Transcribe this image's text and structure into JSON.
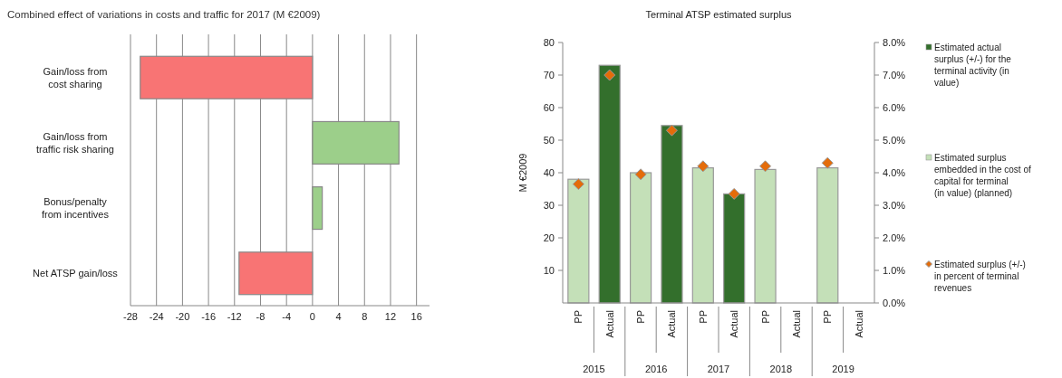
{
  "chart_data": [
    {
      "type": "bar",
      "orientation": "horizontal",
      "title": "Combined effect of variations in costs and traffic for 2017 (M €2009)",
      "categories": [
        "Gain/loss from\ncost sharing",
        "Gain/loss from\ntraffic risk sharing",
        "Bonus/penalty\nfrom incentives",
        "Net ATSP gain/loss"
      ],
      "values": [
        -26.5,
        13.3,
        1.5,
        -11.3
      ],
      "colors": [
        "#f87474",
        "#9ccf8a",
        "#9ccf8a",
        "#f87474"
      ],
      "xlim": [
        -28,
        18
      ],
      "xticks": [
        -28,
        -24,
        -20,
        -16,
        -12,
        -8,
        -4,
        0,
        4,
        8,
        12,
        16
      ],
      "grid": "x",
      "legend": false
    },
    {
      "type": "bar",
      "title": "Terminal ATSP estimated surplus",
      "ylabel": "M €2009",
      "categories": [
        "PP",
        "Actual",
        "PP",
        "Actual",
        "PP",
        "Actual",
        "PP",
        "Actual",
        "PP",
        "Actual"
      ],
      "annotations": [
        "2015",
        "2016",
        "2017",
        "2018",
        "2019"
      ],
      "series": [
        {
          "name": "Estimated actual surplus (+/-) for the terminal activity (in value)",
          "color": "#336f2c",
          "values": [
            null,
            73,
            null,
            54.5,
            null,
            33.5,
            null,
            null,
            null,
            null
          ]
        },
        {
          "name": "Estimated surplus embedded in the cost of capital for terminal (in value) (planned)",
          "color": "#c4e0b8",
          "values": [
            38,
            null,
            40,
            null,
            41.5,
            null,
            41,
            null,
            41.5,
            null
          ]
        },
        {
          "name": "Estimated surplus (+/-) in percent of terminal revenues",
          "type": "scatter",
          "axis": "y2",
          "marker": "diamond",
          "color": "#e46c0a",
          "values": [
            3.65,
            7.0,
            3.95,
            5.3,
            4.2,
            3.35,
            4.2,
            null,
            4.3,
            null
          ]
        }
      ],
      "ylim": [
        0,
        80
      ],
      "yticks": [
        10,
        20,
        30,
        40,
        50,
        60,
        70,
        80
      ],
      "y2lim": [
        0,
        8
      ],
      "y2ticks": [
        {
          "value": 0,
          "label": "0.0%"
        },
        {
          "value": 1,
          "label": "1.0%"
        },
        {
          "value": 2,
          "label": "2.0%"
        },
        {
          "value": 3,
          "label": "3.0%"
        },
        {
          "value": 4,
          "label": "4.0%"
        },
        {
          "value": 5,
          "label": "5.0%"
        },
        {
          "value": 6,
          "label": "6.0%"
        },
        {
          "value": 7,
          "label": "7.0%"
        },
        {
          "value": 8,
          "label": "8.0%"
        }
      ],
      "grid": false,
      "legend": "right"
    }
  ]
}
